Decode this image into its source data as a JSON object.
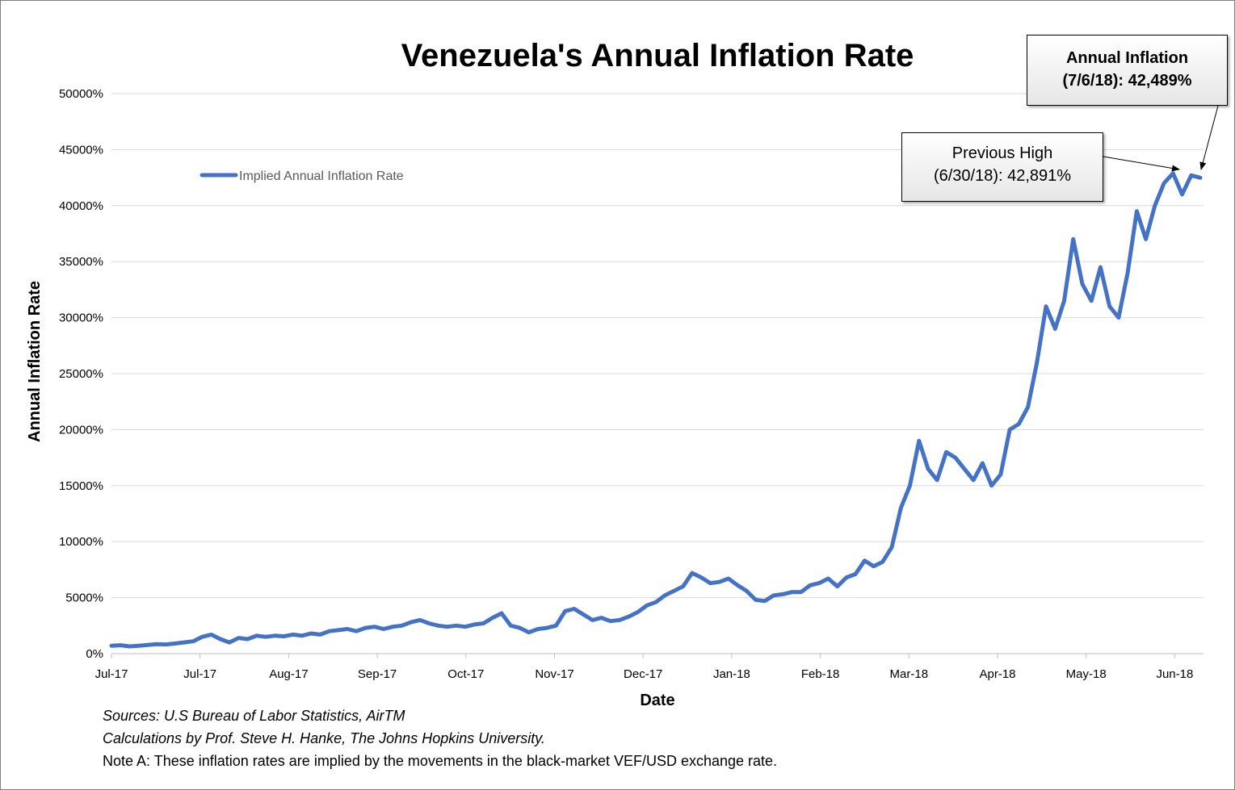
{
  "chart_data": {
    "type": "line",
    "title": "Venezuela's Annual Inflation Rate",
    "xlabel": "Date",
    "ylabel": "Annual Inflation Rate",
    "ylim": [
      0,
      50000
    ],
    "y_ticks": [
      "0%",
      "5000%",
      "10000%",
      "15000%",
      "20000%",
      "25000%",
      "30000%",
      "35000%",
      "40000%",
      "45000%",
      "50000%"
    ],
    "x_tick_labels": [
      "Jul-17",
      "Jul-17",
      "Aug-17",
      "Sep-17",
      "Oct-17",
      "Nov-17",
      "Dec-17",
      "Jan-18",
      "Feb-18",
      "Mar-18",
      "Apr-18",
      "May-18",
      "Jun-18"
    ],
    "grid": "horizontal",
    "legend_position": "top-left",
    "series": [
      {
        "name": "Implied Annual Inflation Rate",
        "color": "#4472c4",
        "x_start": "2017-07-01",
        "x_end": "2018-07-06",
        "values": [
          700,
          750,
          650,
          700,
          780,
          850,
          820,
          900,
          1000,
          1100,
          1500,
          1700,
          1300,
          1000,
          1400,
          1300,
          1600,
          1500,
          1600,
          1550,
          1700,
          1600,
          1800,
          1700,
          2000,
          2100,
          2200,
          2000,
          2300,
          2400,
          2200,
          2400,
          2500,
          2800,
          3000,
          2700,
          2500,
          2400,
          2500,
          2400,
          2600,
          2700,
          3200,
          3600,
          2500,
          2300,
          1900,
          2200,
          2300,
          2500,
          3800,
          4000,
          3500,
          3000,
          3200,
          2900,
          3000,
          3300,
          3700,
          4300,
          4600,
          5200,
          5600,
          6000,
          7200,
          6800,
          6300,
          6400,
          6700,
          6100,
          5600,
          4800,
          4700,
          5200,
          5300,
          5500,
          5500,
          6100,
          6300,
          6700,
          6000,
          6800,
          7100,
          8300,
          7800,
          8200,
          9500,
          13000,
          15000,
          19000,
          16500,
          15500,
          18000,
          17500,
          16500,
          15500,
          17000,
          15000,
          16000,
          20000,
          20500,
          22000,
          26000,
          31000,
          29000,
          31500,
          37000,
          33000,
          31500,
          34500,
          31000,
          30000,
          34000,
          39500,
          37000,
          40000,
          42000,
          42891,
          41000,
          42700,
          42489
        ]
      }
    ],
    "annotations": [
      {
        "label_line1": "Previous High",
        "label_line2": "(6/30/18): 42,891%",
        "date": "2018-06-30",
        "value": 42891
      },
      {
        "label_line1": "Annual Inflation",
        "label_line2": "(7/6/18): 42,489%",
        "date": "2018-07-06",
        "value": 42489
      }
    ]
  },
  "notes": {
    "sources": "Sources: U.S Bureau of Labor Statistics, AirTM",
    "calculations": "Calculations by Prof. Steve H. Hanke, The Johns Hopkins University.",
    "note_a": "Note A: These inflation rates are implied by the movements in the black-market VEF/USD exchange rate."
  }
}
